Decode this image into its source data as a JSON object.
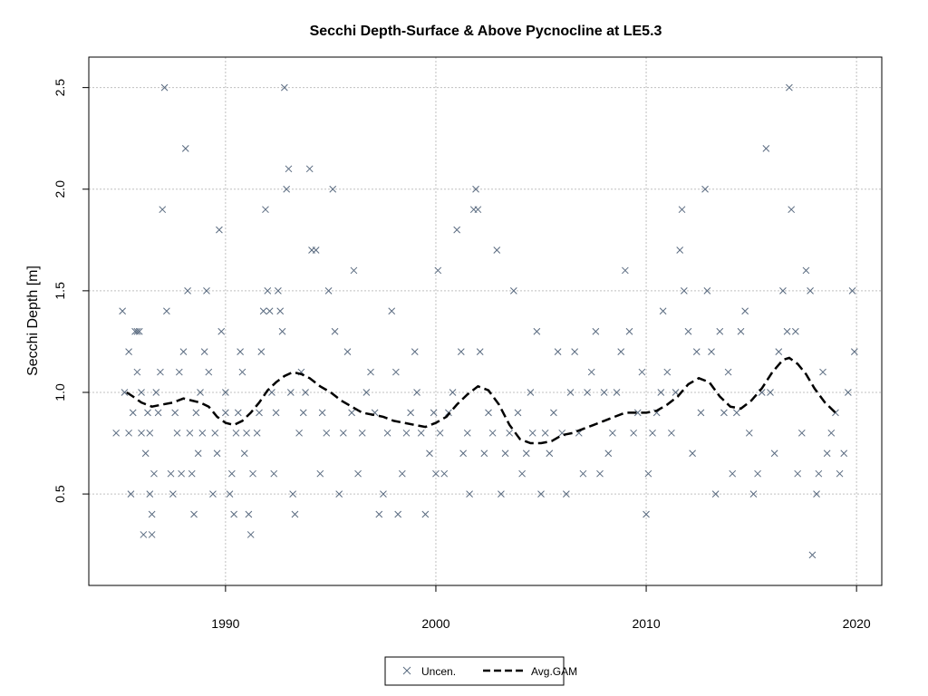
{
  "chart_data": {
    "type": "scatter",
    "title": "Secchi Depth-Surface & Above Pycnocline at LE5.3",
    "ylabel": "Secchi Depth [m]",
    "xlabel": "",
    "xlim": [
      1983.5,
      2021.2
    ],
    "ylim": [
      0.05,
      2.65
    ],
    "x_ticks": [
      1990,
      2000,
      2010,
      2020
    ],
    "y_ticks": [
      0.5,
      1.0,
      1.5,
      2.0,
      2.5
    ],
    "x_tick_labels": [
      "1990",
      "2000",
      "2010",
      "2020"
    ],
    "y_tick_labels": [
      "0.5",
      "1.0",
      "1.5",
      "2.0",
      "2.5"
    ],
    "grid": true,
    "legend_position": "bottom-center",
    "colors": {
      "points": "#5a6b80",
      "line": "#000000",
      "grid": "#c0c0c0"
    },
    "series": [
      {
        "name": "Uncen.",
        "kind": "scatter",
        "marker": "x",
        "points": [
          [
            1984.8,
            0.8
          ],
          [
            1985.1,
            1.4
          ],
          [
            1985.2,
            1.0
          ],
          [
            1985.4,
            1.2
          ],
          [
            1985.4,
            0.8
          ],
          [
            1985.5,
            0.5
          ],
          [
            1985.6,
            0.9
          ],
          [
            1985.7,
            1.3
          ],
          [
            1985.8,
            1.3
          ],
          [
            1985.8,
            1.1
          ],
          [
            1985.9,
            1.3
          ],
          [
            1986.0,
            1.0
          ],
          [
            1986.0,
            0.8
          ],
          [
            1986.1,
            0.3
          ],
          [
            1986.2,
            0.7
          ],
          [
            1986.3,
            0.9
          ],
          [
            1986.4,
            0.5
          ],
          [
            1986.4,
            0.8
          ],
          [
            1986.5,
            0.3
          ],
          [
            1986.5,
            0.4
          ],
          [
            1986.6,
            0.6
          ],
          [
            1986.7,
            1.0
          ],
          [
            1986.8,
            0.9
          ],
          [
            1986.9,
            1.1
          ],
          [
            1987.0,
            1.9
          ],
          [
            1987.1,
            2.5
          ],
          [
            1987.2,
            1.4
          ],
          [
            1987.4,
            0.6
          ],
          [
            1987.5,
            0.5
          ],
          [
            1987.6,
            0.9
          ],
          [
            1987.7,
            0.8
          ],
          [
            1987.8,
            1.1
          ],
          [
            1987.9,
            0.6
          ],
          [
            1988.0,
            1.2
          ],
          [
            1988.1,
            2.2
          ],
          [
            1988.2,
            1.5
          ],
          [
            1988.3,
            0.8
          ],
          [
            1988.4,
            0.6
          ],
          [
            1988.5,
            0.4
          ],
          [
            1988.6,
            0.9
          ],
          [
            1988.7,
            0.7
          ],
          [
            1988.8,
            1.0
          ],
          [
            1988.9,
            0.8
          ],
          [
            1989.0,
            1.2
          ],
          [
            1989.1,
            1.5
          ],
          [
            1989.2,
            1.1
          ],
          [
            1989.4,
            0.5
          ],
          [
            1989.5,
            0.8
          ],
          [
            1989.6,
            0.7
          ],
          [
            1989.7,
            1.8
          ],
          [
            1989.8,
            1.3
          ],
          [
            1990.0,
            0.9
          ],
          [
            1990.0,
            1.0
          ],
          [
            1990.2,
            0.5
          ],
          [
            1990.3,
            0.6
          ],
          [
            1990.4,
            0.4
          ],
          [
            1990.5,
            0.8
          ],
          [
            1990.6,
            0.9
          ],
          [
            1990.7,
            1.2
          ],
          [
            1990.8,
            1.1
          ],
          [
            1990.9,
            0.7
          ],
          [
            1991.0,
            0.8
          ],
          [
            1991.1,
            0.4
          ],
          [
            1991.2,
            0.3
          ],
          [
            1991.3,
            0.6
          ],
          [
            1991.5,
            0.8
          ],
          [
            1991.6,
            0.9
          ],
          [
            1991.7,
            1.2
          ],
          [
            1991.8,
            1.4
          ],
          [
            1991.9,
            1.9
          ],
          [
            1992.0,
            1.5
          ],
          [
            1992.1,
            1.4
          ],
          [
            1992.2,
            1.0
          ],
          [
            1992.3,
            0.6
          ],
          [
            1992.4,
            0.9
          ],
          [
            1992.5,
            1.5
          ],
          [
            1992.6,
            1.4
          ],
          [
            1992.7,
            1.3
          ],
          [
            1992.8,
            2.5
          ],
          [
            1992.9,
            2.0
          ],
          [
            1993.0,
            2.1
          ],
          [
            1993.1,
            1.0
          ],
          [
            1993.2,
            0.5
          ],
          [
            1993.3,
            0.4
          ],
          [
            1993.5,
            0.8
          ],
          [
            1993.6,
            1.1
          ],
          [
            1993.7,
            0.9
          ],
          [
            1993.8,
            1.0
          ],
          [
            1994.0,
            2.1
          ],
          [
            1994.1,
            1.7
          ],
          [
            1994.3,
            1.7
          ],
          [
            1994.5,
            0.6
          ],
          [
            1994.6,
            0.9
          ],
          [
            1994.8,
            0.8
          ],
          [
            1994.9,
            1.5
          ],
          [
            1995.1,
            2.0
          ],
          [
            1995.2,
            1.3
          ],
          [
            1995.4,
            0.5
          ],
          [
            1995.6,
            0.8
          ],
          [
            1995.8,
            1.2
          ],
          [
            1996.0,
            0.9
          ],
          [
            1996.1,
            1.6
          ],
          [
            1996.3,
            0.6
          ],
          [
            1996.5,
            0.8
          ],
          [
            1996.7,
            1.0
          ],
          [
            1996.9,
            1.1
          ],
          [
            1997.1,
            0.9
          ],
          [
            1997.3,
            0.4
          ],
          [
            1997.5,
            0.5
          ],
          [
            1997.7,
            0.8
          ],
          [
            1997.9,
            1.4
          ],
          [
            1998.1,
            1.1
          ],
          [
            1998.2,
            0.4
          ],
          [
            1998.4,
            0.6
          ],
          [
            1998.6,
            0.8
          ],
          [
            1998.8,
            0.9
          ],
          [
            1999.0,
            1.2
          ],
          [
            1999.1,
            1.0
          ],
          [
            1999.3,
            0.8
          ],
          [
            1999.5,
            0.4
          ],
          [
            1999.7,
            0.7
          ],
          [
            1999.9,
            0.9
          ],
          [
            2000.0,
            0.6
          ],
          [
            2000.1,
            1.6
          ],
          [
            2000.2,
            0.8
          ],
          [
            2000.4,
            0.6
          ],
          [
            2000.6,
            0.9
          ],
          [
            2000.8,
            1.0
          ],
          [
            2001.0,
            1.8
          ],
          [
            2001.2,
            1.2
          ],
          [
            2001.3,
            0.7
          ],
          [
            2001.5,
            0.8
          ],
          [
            2001.6,
            0.5
          ],
          [
            2001.8,
            1.9
          ],
          [
            2001.9,
            2.0
          ],
          [
            2002.0,
            1.9
          ],
          [
            2002.1,
            1.2
          ],
          [
            2002.3,
            0.7
          ],
          [
            2002.5,
            0.9
          ],
          [
            2002.7,
            0.8
          ],
          [
            2002.9,
            1.7
          ],
          [
            2003.1,
            0.5
          ],
          [
            2003.3,
            0.7
          ],
          [
            2003.5,
            0.8
          ],
          [
            2003.7,
            1.5
          ],
          [
            2003.9,
            0.9
          ],
          [
            2004.1,
            0.6
          ],
          [
            2004.3,
            0.7
          ],
          [
            2004.5,
            1.0
          ],
          [
            2004.6,
            0.8
          ],
          [
            2004.8,
            1.3
          ],
          [
            2005.0,
            0.5
          ],
          [
            2005.2,
            0.8
          ],
          [
            2005.4,
            0.7
          ],
          [
            2005.6,
            0.9
          ],
          [
            2005.8,
            1.2
          ],
          [
            2006.0,
            0.8
          ],
          [
            2006.2,
            0.5
          ],
          [
            2006.4,
            1.0
          ],
          [
            2006.6,
            1.2
          ],
          [
            2006.8,
            0.8
          ],
          [
            2007.0,
            0.6
          ],
          [
            2007.2,
            1.0
          ],
          [
            2007.4,
            1.1
          ],
          [
            2007.6,
            1.3
          ],
          [
            2007.8,
            0.6
          ],
          [
            2008.0,
            1.0
          ],
          [
            2008.2,
            0.7
          ],
          [
            2008.4,
            0.8
          ],
          [
            2008.6,
            1.0
          ],
          [
            2008.8,
            1.2
          ],
          [
            2009.0,
            1.6
          ],
          [
            2009.2,
            1.3
          ],
          [
            2009.4,
            0.8
          ],
          [
            2009.6,
            0.9
          ],
          [
            2009.8,
            1.1
          ],
          [
            2010.0,
            0.4
          ],
          [
            2010.1,
            0.6
          ],
          [
            2010.3,
            0.8
          ],
          [
            2010.5,
            0.9
          ],
          [
            2010.7,
            1.0
          ],
          [
            2010.8,
            1.4
          ],
          [
            2011.0,
            1.1
          ],
          [
            2011.2,
            0.8
          ],
          [
            2011.4,
            1.0
          ],
          [
            2011.6,
            1.7
          ],
          [
            2011.7,
            1.9
          ],
          [
            2011.8,
            1.5
          ],
          [
            2012.0,
            1.3
          ],
          [
            2012.2,
            0.7
          ],
          [
            2012.4,
            1.2
          ],
          [
            2012.6,
            0.9
          ],
          [
            2012.8,
            2.0
          ],
          [
            2012.9,
            1.5
          ],
          [
            2013.1,
            1.2
          ],
          [
            2013.3,
            0.5
          ],
          [
            2013.5,
            1.3
          ],
          [
            2013.7,
            0.9
          ],
          [
            2013.9,
            1.1
          ],
          [
            2014.1,
            0.6
          ],
          [
            2014.3,
            0.9
          ],
          [
            2014.5,
            1.3
          ],
          [
            2014.7,
            1.4
          ],
          [
            2014.9,
            0.8
          ],
          [
            2015.1,
            0.5
          ],
          [
            2015.3,
            0.6
          ],
          [
            2015.5,
            1.0
          ],
          [
            2015.7,
            2.2
          ],
          [
            2015.9,
            1.0
          ],
          [
            2016.1,
            0.7
          ],
          [
            2016.3,
            1.2
          ],
          [
            2016.5,
            1.5
          ],
          [
            2016.7,
            1.3
          ],
          [
            2016.8,
            2.5
          ],
          [
            2016.9,
            1.9
          ],
          [
            2017.1,
            1.3
          ],
          [
            2017.2,
            0.6
          ],
          [
            2017.4,
            0.8
          ],
          [
            2017.6,
            1.6
          ],
          [
            2017.8,
            1.5
          ],
          [
            2017.9,
            0.2
          ],
          [
            2018.1,
            0.5
          ],
          [
            2018.2,
            0.6
          ],
          [
            2018.4,
            1.1
          ],
          [
            2018.6,
            0.7
          ],
          [
            2018.8,
            0.8
          ],
          [
            2019.0,
            0.9
          ],
          [
            2019.2,
            0.6
          ],
          [
            2019.4,
            0.7
          ],
          [
            2019.6,
            1.0
          ],
          [
            2019.8,
            1.5
          ],
          [
            2019.9,
            1.2
          ]
        ]
      },
      {
        "name": "Avg.GAM",
        "kind": "line",
        "dash": true,
        "points": [
          [
            1985.3,
            1.0
          ],
          [
            1985.6,
            0.98
          ],
          [
            1986.0,
            0.95
          ],
          [
            1986.5,
            0.93
          ],
          [
            1987.0,
            0.94
          ],
          [
            1987.5,
            0.95
          ],
          [
            1988.0,
            0.97
          ],
          [
            1988.4,
            0.96
          ],
          [
            1988.8,
            0.95
          ],
          [
            1989.2,
            0.93
          ],
          [
            1989.6,
            0.88
          ],
          [
            1990.0,
            0.85
          ],
          [
            1990.4,
            0.84
          ],
          [
            1990.8,
            0.86
          ],
          [
            1991.2,
            0.9
          ],
          [
            1991.6,
            0.95
          ],
          [
            1992.0,
            1.01
          ],
          [
            1992.4,
            1.05
          ],
          [
            1992.8,
            1.08
          ],
          [
            1993.2,
            1.1
          ],
          [
            1993.6,
            1.09
          ],
          [
            1994.0,
            1.07
          ],
          [
            1994.5,
            1.03
          ],
          [
            1995.0,
            1.0
          ],
          [
            1995.5,
            0.96
          ],
          [
            1996.0,
            0.93
          ],
          [
            1996.5,
            0.9
          ],
          [
            1997.0,
            0.89
          ],
          [
            1997.5,
            0.88
          ],
          [
            1998.0,
            0.86
          ],
          [
            1998.5,
            0.85
          ],
          [
            1999.0,
            0.84
          ],
          [
            1999.5,
            0.83
          ],
          [
            2000.0,
            0.85
          ],
          [
            2000.5,
            0.88
          ],
          [
            2001.0,
            0.94
          ],
          [
            2001.5,
            0.99
          ],
          [
            2002.0,
            1.03
          ],
          [
            2002.5,
            1.01
          ],
          [
            2003.0,
            0.94
          ],
          [
            2003.5,
            0.84
          ],
          [
            2004.0,
            0.77
          ],
          [
            2004.5,
            0.75
          ],
          [
            2005.0,
            0.75
          ],
          [
            2005.5,
            0.76
          ],
          [
            2006.0,
            0.79
          ],
          [
            2006.5,
            0.8
          ],
          [
            2007.0,
            0.82
          ],
          [
            2007.5,
            0.84
          ],
          [
            2008.0,
            0.86
          ],
          [
            2008.5,
            0.88
          ],
          [
            2009.0,
            0.9
          ],
          [
            2009.5,
            0.9
          ],
          [
            2010.0,
            0.9
          ],
          [
            2010.5,
            0.91
          ],
          [
            2011.0,
            0.94
          ],
          [
            2011.5,
            0.98
          ],
          [
            2012.0,
            1.04
          ],
          [
            2012.5,
            1.07
          ],
          [
            2013.0,
            1.05
          ],
          [
            2013.5,
            0.98
          ],
          [
            2014.0,
            0.93
          ],
          [
            2014.5,
            0.92
          ],
          [
            2015.0,
            0.96
          ],
          [
            2015.5,
            1.02
          ],
          [
            2016.0,
            1.1
          ],
          [
            2016.5,
            1.16
          ],
          [
            2016.8,
            1.17
          ],
          [
            2017.2,
            1.14
          ],
          [
            2017.6,
            1.09
          ],
          [
            2018.0,
            1.02
          ],
          [
            2018.5,
            0.95
          ],
          [
            2019.0,
            0.9
          ]
        ]
      }
    ]
  }
}
